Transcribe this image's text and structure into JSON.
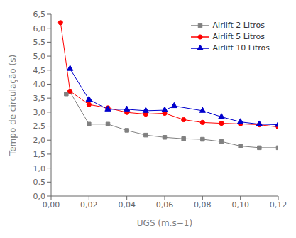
{
  "chart_data": {
    "type": "line",
    "x_label": "UGS (m.s−1)",
    "y_label": "Tempo de circulação (s)",
    "xlim": [
      0.0,
      0.12
    ],
    "ylim": [
      0.0,
      6.5
    ],
    "xticks": [
      {
        "value": 0.0,
        "label": "0,00"
      },
      {
        "value": 0.02,
        "label": "0,02"
      },
      {
        "value": 0.04,
        "label": "0,04"
      },
      {
        "value": 0.06,
        "label": "0,06"
      },
      {
        "value": 0.08,
        "label": "0,08"
      },
      {
        "value": 0.1,
        "label": "0,10"
      },
      {
        "value": 0.12,
        "label": "0,12"
      }
    ],
    "yticks": [
      {
        "value": 0.0,
        "label": "0,0"
      },
      {
        "value": 0.5,
        "label": "0,5"
      },
      {
        "value": 1.0,
        "label": "1,0"
      },
      {
        "value": 1.5,
        "label": "1,5"
      },
      {
        "value": 2.0,
        "label": "2,0"
      },
      {
        "value": 2.5,
        "label": "2,5"
      },
      {
        "value": 3.0,
        "label": "3,0"
      },
      {
        "value": 3.5,
        "label": "3,5"
      },
      {
        "value": 4.0,
        "label": "4,0"
      },
      {
        "value": 4.5,
        "label": "4,5"
      },
      {
        "value": 5.0,
        "label": "5,0"
      },
      {
        "value": 5.5,
        "label": "5,5"
      },
      {
        "value": 6.0,
        "label": "6,0"
      },
      {
        "value": 6.5,
        "label": "6,5"
      }
    ],
    "grid": false,
    "legend": "upper right",
    "series": [
      {
        "name": "Airlift 2 Litros",
        "color": "#808080",
        "marker": "square",
        "x": [
          0.008,
          0.01,
          0.02,
          0.03,
          0.04,
          0.05,
          0.06,
          0.07,
          0.08,
          0.09,
          0.1,
          0.11,
          0.12
        ],
        "values": [
          3.65,
          3.72,
          2.57,
          2.57,
          2.35,
          2.18,
          2.1,
          2.05,
          2.03,
          1.95,
          1.79,
          1.73,
          1.73
        ]
      },
      {
        "name": "Airlift 5 Litros",
        "color": "#ff0000",
        "marker": "circle",
        "x": [
          0.005,
          0.01,
          0.02,
          0.03,
          0.04,
          0.05,
          0.06,
          0.07,
          0.08,
          0.09,
          0.1,
          0.11,
          0.12
        ],
        "values": [
          6.2,
          3.75,
          3.27,
          3.15,
          2.99,
          2.93,
          2.96,
          2.73,
          2.63,
          2.6,
          2.58,
          2.55,
          2.47
        ]
      },
      {
        "name": "Airlift 10 Litros",
        "color": "#0000cc",
        "marker": "triangle",
        "x": [
          0.01,
          0.02,
          0.03,
          0.04,
          0.05,
          0.06,
          0.065,
          0.08,
          0.09,
          0.1,
          0.11,
          0.12
        ],
        "values": [
          4.55,
          3.45,
          3.1,
          3.1,
          3.05,
          3.07,
          3.22,
          3.05,
          2.83,
          2.65,
          2.57,
          2.55
        ]
      }
    ]
  }
}
